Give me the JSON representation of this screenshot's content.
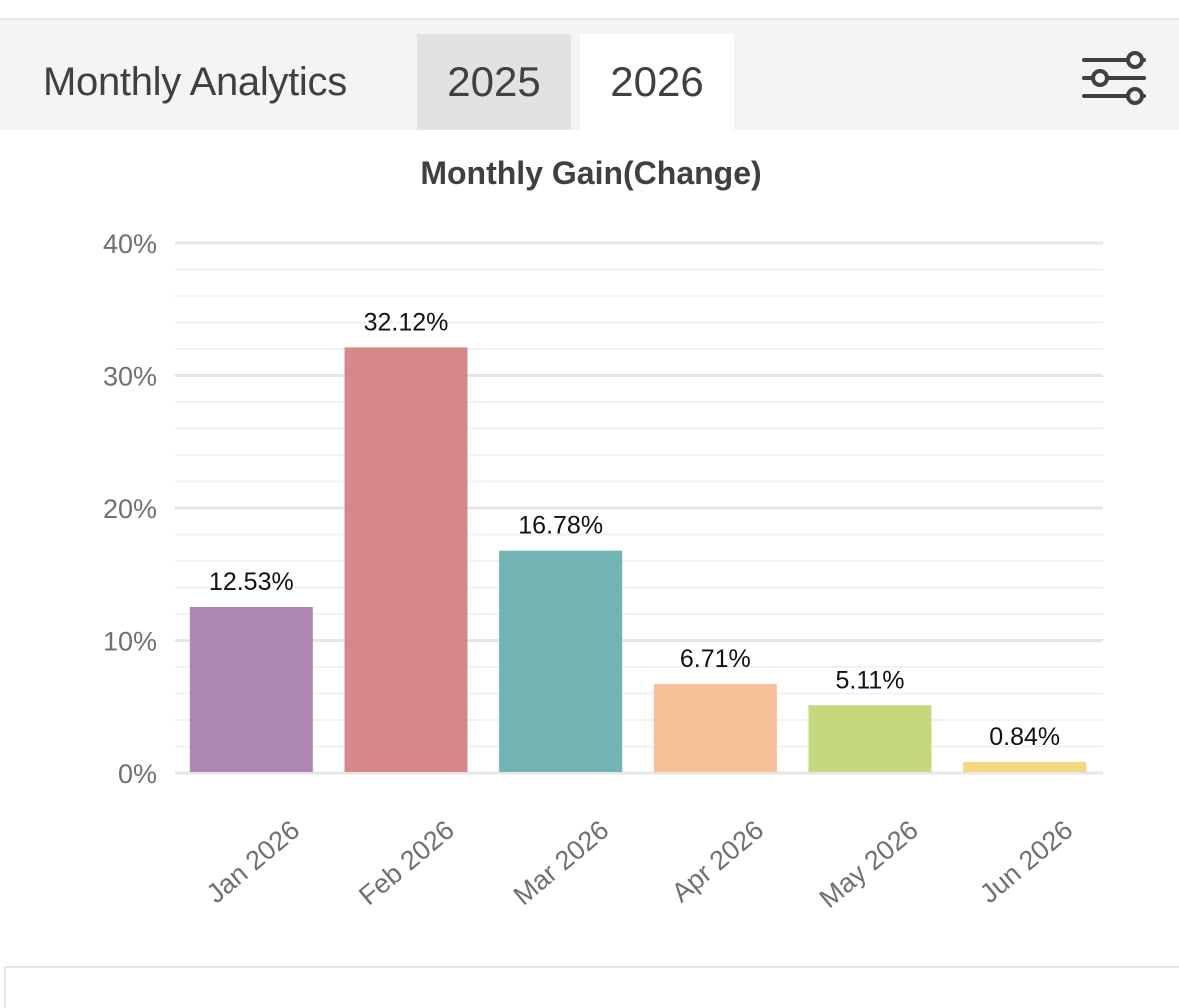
{
  "header": {
    "title": "Monthly Analytics",
    "tabs": [
      {
        "label": "2025",
        "selected": false
      },
      {
        "label": "2026",
        "selected": true
      }
    ],
    "filter_icon": "sliders-icon"
  },
  "colors": {
    "text": "#404040",
    "axis_text": "#707070",
    "grid_major": "#e6e6e6",
    "grid_minor": "#f2f2f2",
    "header_bg": "#f4f4f4",
    "tab_inactive_bg": "#e2e2e2"
  },
  "chart_data": {
    "type": "bar",
    "title": "Monthly Gain(Change)",
    "xlabel": "",
    "ylabel": "",
    "categories": [
      "Jan 2026",
      "Feb 2026",
      "Mar 2026",
      "Apr 2026",
      "May 2026",
      "Jun 2026"
    ],
    "values": [
      12.53,
      32.12,
      16.78,
      6.71,
      5.11,
      0.84
    ],
    "value_labels": [
      "12.53%",
      "32.12%",
      "16.78%",
      "6.71%",
      "5.11%",
      "0.84%"
    ],
    "colors": [
      "#ad87b1",
      "#d58887",
      "#72b3b3",
      "#f5bf98",
      "#c4d87c",
      "#f3d781"
    ],
    "ylim": [
      0,
      40
    ],
    "yticks": [
      0,
      10,
      20,
      30,
      40
    ],
    "ytick_labels": [
      "0%",
      "10%",
      "20%",
      "30%",
      "40%"
    ],
    "grid": true,
    "legend": "none"
  }
}
